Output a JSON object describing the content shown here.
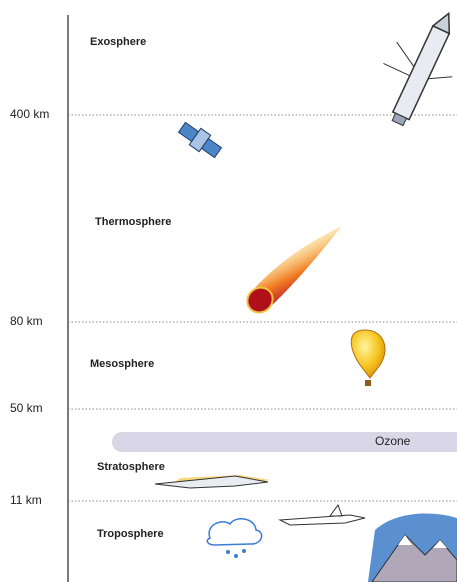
{
  "boundaries": [
    {
      "label": "400 km"
    },
    {
      "label": "80 km"
    },
    {
      "label": "50 km"
    },
    {
      "label": "11 km"
    }
  ],
  "layers": [
    {
      "label": "Exosphere"
    },
    {
      "label": "Thermosphere"
    },
    {
      "label": "Mesosphere"
    },
    {
      "label": "Stratosphere"
    },
    {
      "label": "Troposphere"
    }
  ],
  "ozone": {
    "label": "Ozone"
  }
}
